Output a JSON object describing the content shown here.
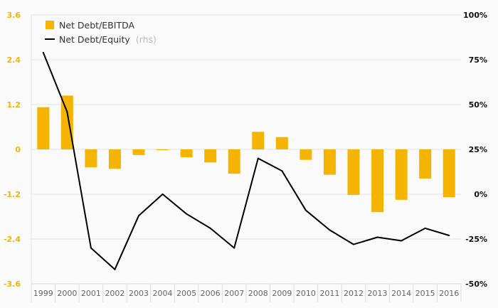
{
  "chart_data": {
    "type": "bar",
    "categories": [
      "1999",
      "2000",
      "2001",
      "2002",
      "2003",
      "2004",
      "2005",
      "2006",
      "2007",
      "2008",
      "2009",
      "2010",
      "2011",
      "2012",
      "2013",
      "2014",
      "2015",
      "2016"
    ],
    "series": [
      {
        "name": "Net Debt/EBITDA",
        "type": "bar",
        "axis": "left",
        "color": "#f5b400",
        "values": [
          1.13,
          1.44,
          -0.48,
          -0.52,
          -0.15,
          -0.02,
          -0.21,
          -0.35,
          -0.65,
          0.47,
          0.33,
          -0.28,
          -0.68,
          -1.22,
          -1.68,
          -1.35,
          -0.78,
          -1.28
        ]
      },
      {
        "name": "Net Debt/Equity",
        "name_suffix": "(rhs)",
        "type": "line",
        "axis": "right",
        "color": "#000000",
        "values": [
          79,
          46,
          -30,
          -42,
          -12,
          0,
          -11,
          -19,
          -30,
          20,
          13,
          -9,
          -20,
          -28,
          -24,
          -26,
          -19,
          -23
        ]
      }
    ],
    "y_left": {
      "ylim": [
        -3.6,
        3.6
      ],
      "ticks": [
        3.6,
        2.4,
        1.2,
        0,
        -1.2,
        -2.4,
        -3.6
      ],
      "tick_labels": [
        "3.6",
        "2.4",
        "1.2",
        "0",
        "-1.2",
        "-2.4",
        "-3.6"
      ],
      "color": "#f5b400"
    },
    "y_right": {
      "ylim": [
        -50,
        100
      ],
      "ticks": [
        100,
        75,
        50,
        25,
        0,
        -25,
        -50
      ],
      "tick_labels": [
        "100%",
        "75%",
        "50%",
        "25%",
        "0%",
        "-25%",
        "-50%"
      ],
      "color": "#111111"
    },
    "grid": true,
    "legend_position": "top-left",
    "title": "",
    "xlabel": "",
    "ylabel": ""
  }
}
